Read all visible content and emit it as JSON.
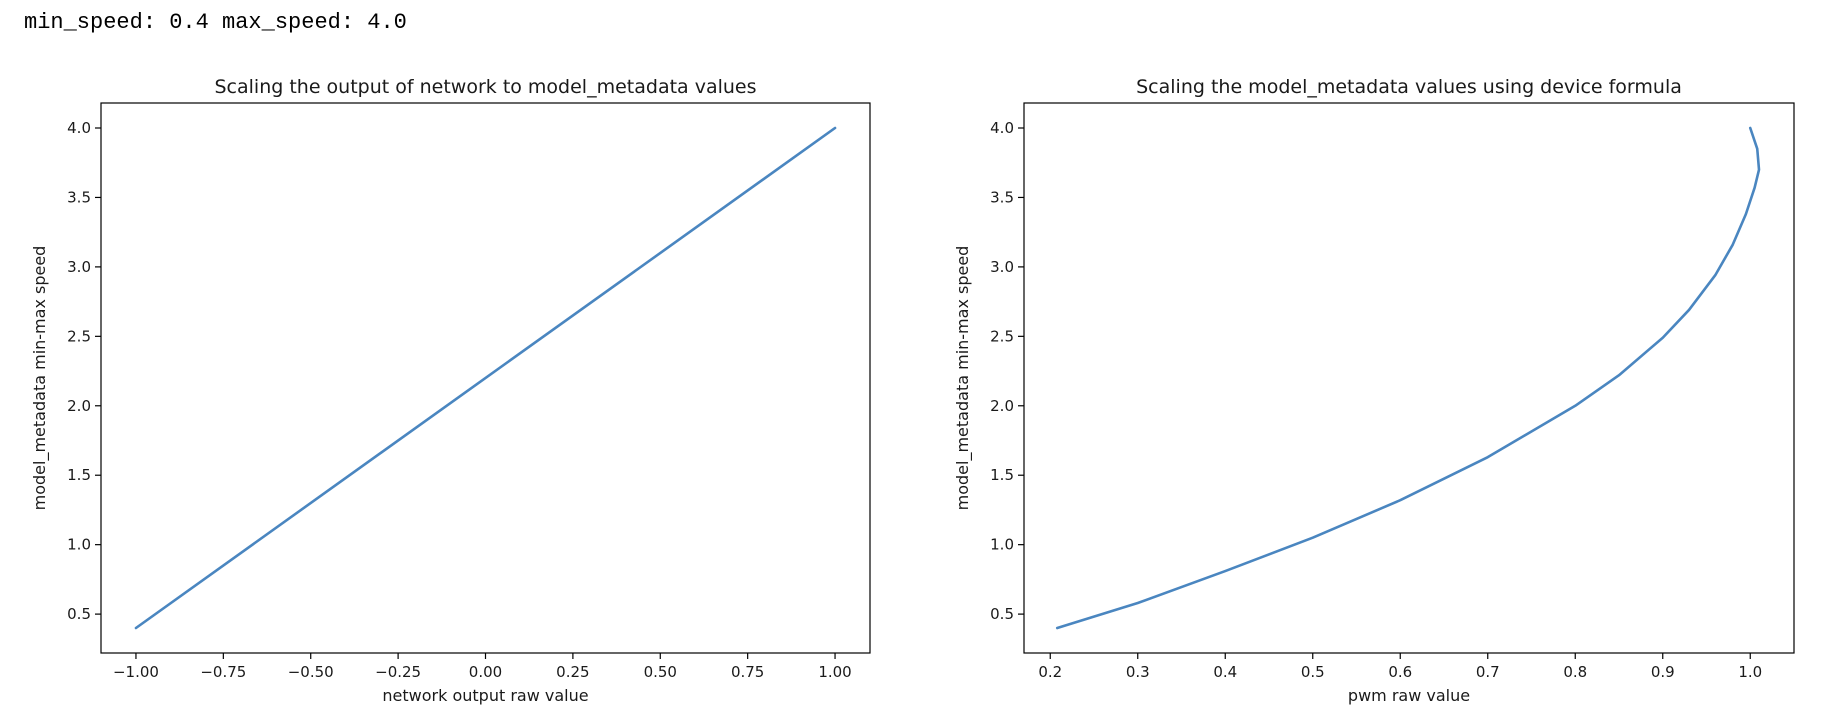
{
  "console": {
    "output_text": "min_speed: 0.4 max_speed: 4.0"
  },
  "style": {
    "line_color": "#4a86c0"
  },
  "chart_data": [
    {
      "type": "line",
      "title": "Scaling the output of network to model_metadata values",
      "xlabel": "network output raw value",
      "ylabel": "model_metadata min-max speed",
      "xlim": [
        -1.1,
        1.1
      ],
      "ylim": [
        0.22,
        4.18
      ],
      "xticks": [
        -1.0,
        -0.75,
        -0.5,
        -0.25,
        0.0,
        0.25,
        0.5,
        0.75,
        1.0
      ],
      "xtick_labels": [
        "−1.00",
        "−0.75",
        "−0.50",
        "−0.25",
        "0.00",
        "0.25",
        "0.50",
        "0.75",
        "1.00"
      ],
      "yticks": [
        0.5,
        1.0,
        1.5,
        2.0,
        2.5,
        3.0,
        3.5,
        4.0
      ],
      "ytick_labels": [
        "0.5",
        "1.0",
        "1.5",
        "2.0",
        "2.5",
        "3.0",
        "3.5",
        "4.0"
      ],
      "grid": false,
      "series": [
        {
          "x": [
            -1.0,
            1.0
          ],
          "y": [
            0.4,
            4.0
          ]
        }
      ]
    },
    {
      "type": "line",
      "title": "Scaling the model_metadata values using device formula",
      "xlabel": "pwm raw value",
      "ylabel": "model_metadata min-max speed",
      "xlim": [
        0.17,
        1.05
      ],
      "ylim": [
        0.22,
        4.18
      ],
      "xticks": [
        0.2,
        0.3,
        0.4,
        0.5,
        0.6,
        0.7,
        0.8,
        0.9,
        1.0
      ],
      "xtick_labels": [
        "0.2",
        "0.3",
        "0.4",
        "0.5",
        "0.6",
        "0.7",
        "0.8",
        "0.9",
        "1.0"
      ],
      "yticks": [
        0.5,
        1.0,
        1.5,
        2.0,
        2.5,
        3.0,
        3.5,
        4.0
      ],
      "ytick_labels": [
        "0.5",
        "1.0",
        "1.5",
        "2.0",
        "2.5",
        "3.0",
        "3.5",
        "4.0"
      ],
      "grid": false,
      "series": [
        {
          "x": [
            0.208,
            0.3,
            0.4,
            0.5,
            0.6,
            0.7,
            0.8,
            0.85,
            0.9,
            0.93,
            0.96,
            0.98,
            0.995,
            1.005,
            1.01,
            1.008,
            1.0
          ],
          "y": [
            0.4,
            0.58,
            0.81,
            1.05,
            1.32,
            1.63,
            2.0,
            2.22,
            2.49,
            2.69,
            2.94,
            3.16,
            3.38,
            3.57,
            3.7,
            3.85,
            4.0
          ]
        }
      ]
    }
  ]
}
